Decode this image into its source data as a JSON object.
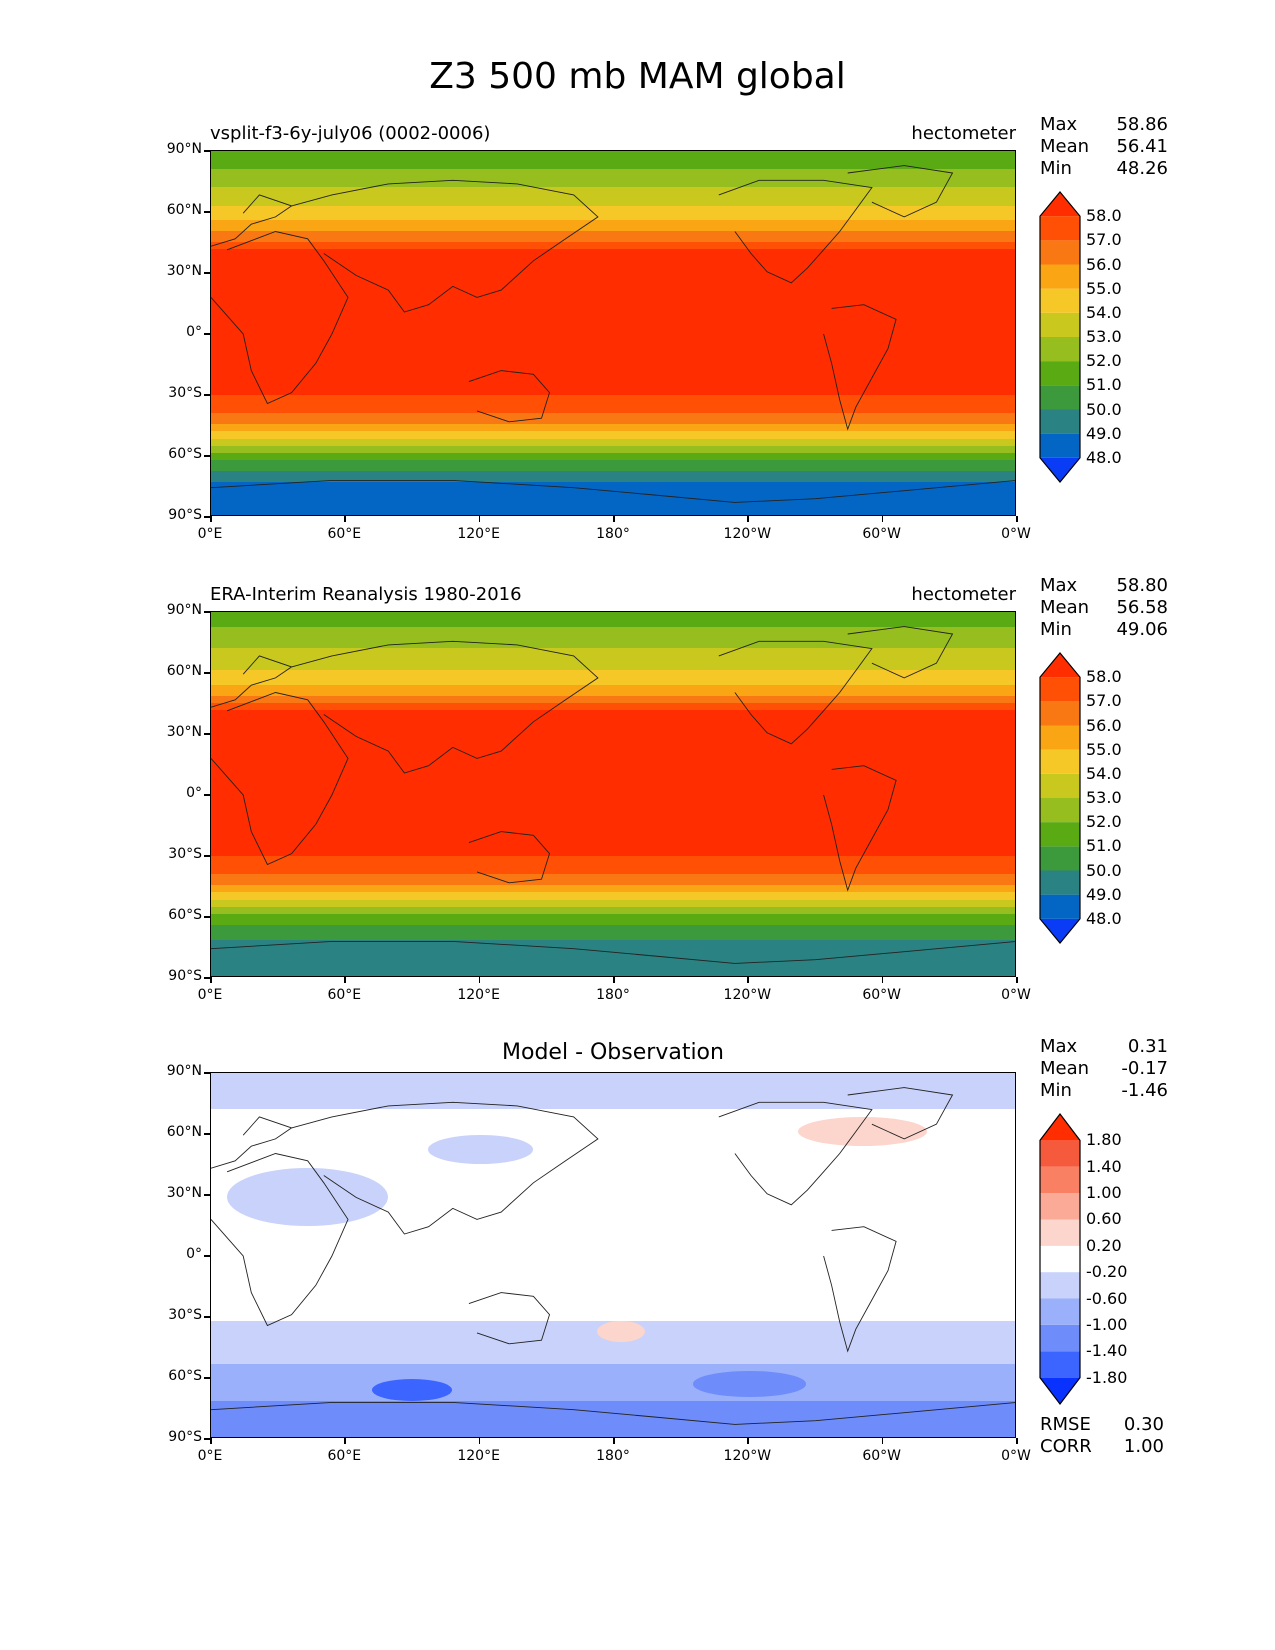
{
  "title": "Z3 500 mb MAM global",
  "axes": {
    "y_ticks": [
      "90°N",
      "60°N",
      "30°N",
      "0°",
      "30°S",
      "60°S",
      "90°S"
    ],
    "x_ticks": [
      "0°E",
      "60°E",
      "120°E",
      "180°",
      "120°W",
      "60°W",
      "0°W"
    ]
  },
  "panels": [
    {
      "left_title": "vsplit-f3-6y-july06 (0002-0006)",
      "right_title": "hectometer",
      "stats": {
        "max_label": "Max",
        "max": "58.86",
        "mean_label": "Mean",
        "mean": "56.41",
        "min_label": "Min",
        "min": "48.26"
      },
      "colorbar": {
        "colors": [
          "#0a3cf5",
          "#0466c4",
          "#2a8282",
          "#3c9a3c",
          "#5aaa14",
          "#96be1e",
          "#c8c81e",
          "#f5c828",
          "#faa514",
          "#fa7814",
          "#ff5005",
          "#ff2d00"
        ],
        "labels": [
          "48.0",
          "49.0",
          "50.0",
          "51.0",
          "52.0",
          "53.0",
          "54.0",
          "55.0",
          "56.0",
          "57.0",
          "58.0"
        ]
      }
    },
    {
      "left_title": "ERA-Interim Reanalysis 1980-2016",
      "right_title": "hectometer",
      "stats": {
        "max_label": "Max",
        "max": "58.80",
        "mean_label": "Mean",
        "mean": "56.58",
        "min_label": "Min",
        "min": "49.06"
      },
      "colorbar": {
        "colors": [
          "#0a3cf5",
          "#0466c4",
          "#2a8282",
          "#3c9a3c",
          "#5aaa14",
          "#96be1e",
          "#c8c81e",
          "#f5c828",
          "#faa514",
          "#fa7814",
          "#ff5005",
          "#ff2d00"
        ],
        "labels": [
          "48.0",
          "49.0",
          "50.0",
          "51.0",
          "52.0",
          "53.0",
          "54.0",
          "55.0",
          "56.0",
          "57.0",
          "58.0"
        ]
      }
    },
    {
      "center_title": "Model - Observation",
      "stats": {
        "max_label": "Max",
        "max": "0.31",
        "mean_label": "Mean",
        "mean": "-0.17",
        "min_label": "Min",
        "min": "-1.46"
      },
      "colorbar": {
        "colors": [
          "#0a32ff",
          "#3c64ff",
          "#6e8cfa",
          "#9bb0fa",
          "#c8d2fa",
          "#ffffff",
          "#fcd5cd",
          "#fbaa98",
          "#fa8064",
          "#f55a3c",
          "#ff2d00"
        ],
        "labels": [
          "-1.80",
          "-1.40",
          "-1.00",
          "-0.60",
          "-0.20",
          "0.20",
          "0.60",
          "1.00",
          "1.40",
          "1.80"
        ]
      },
      "rmse_label": "RMSE",
      "rmse": "0.30",
      "corr_label": "CORR",
      "corr": "1.00"
    }
  ]
}
